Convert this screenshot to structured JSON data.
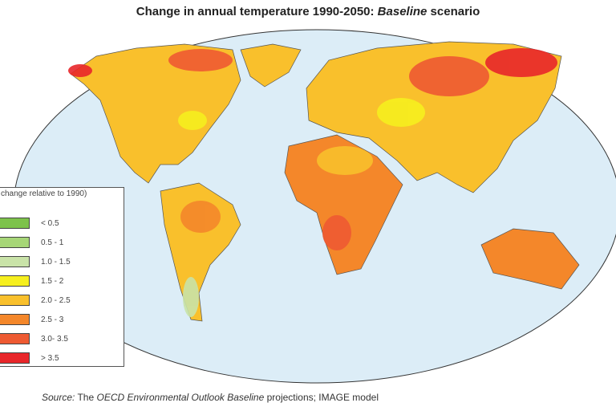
{
  "title": {
    "part1": "Change in annual temperature 1990-2050: ",
    "italic": "Baseline",
    "part2": " scenario"
  },
  "legend": {
    "title": "change relative to 1990)",
    "items": [
      {
        "label": "< 0.5",
        "color": "#7dc24b"
      },
      {
        "label": "0.5 - 1",
        "color": "#a6d677"
      },
      {
        "label": "1.0 - 1.5",
        "color": "#c9e3a8"
      },
      {
        "label": "1.5 - 2",
        "color": "#f6ef1e"
      },
      {
        "label": "2.0 - 2.5",
        "color": "#f9c02c"
      },
      {
        "label": "2.5 - 3",
        "color": "#f4872a"
      },
      {
        "label": "3.0- 3.5",
        "color": "#ee5a32"
      },
      {
        "label": "> 3.5",
        "color": "#e8262a"
      }
    ]
  },
  "colors": {
    "ocean": "#dcedf7",
    "land_base": "#f9c02c"
  },
  "source": {
    "label": "Source:",
    "text1": " The ",
    "italic": "OECD Environmental Outlook Baseline",
    "text2": " projections; IMAGE model"
  }
}
